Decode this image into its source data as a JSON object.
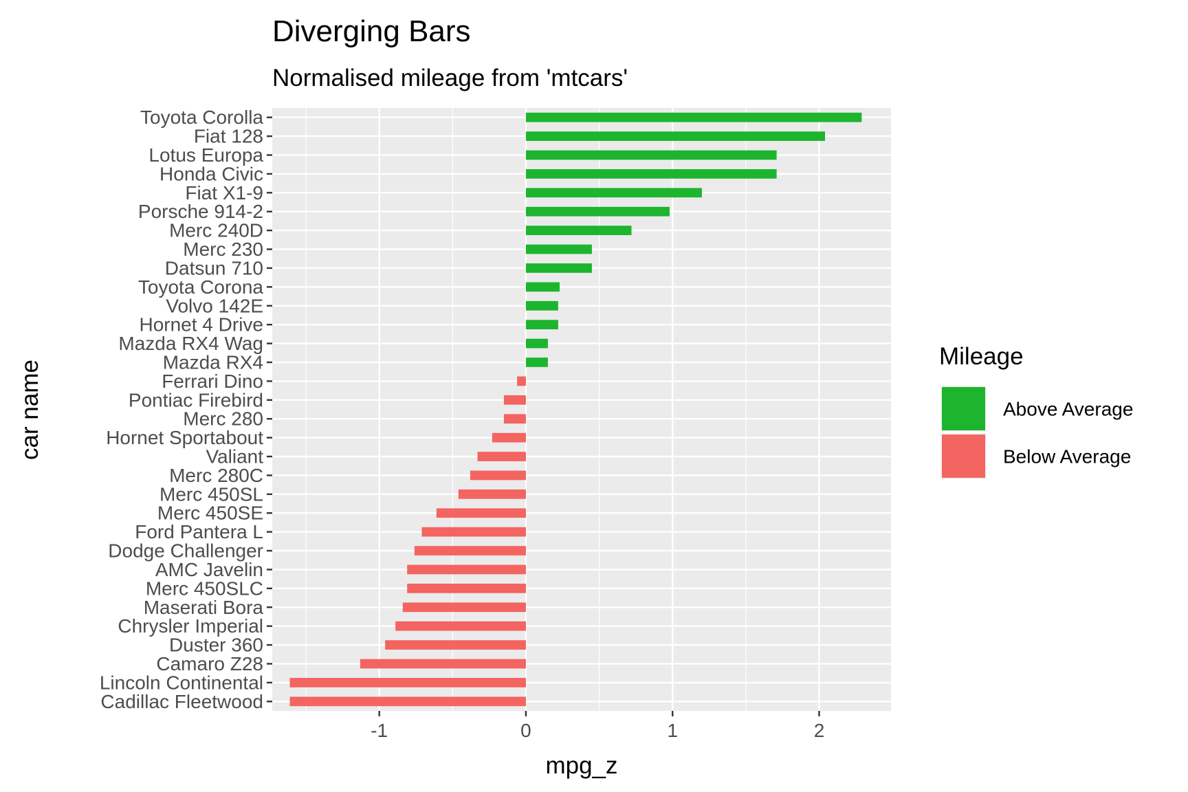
{
  "chart_data": {
    "type": "bar",
    "orientation": "horizontal",
    "title": "Diverging Bars",
    "subtitle": "Normalised mileage from 'mtcars'",
    "xlabel": "mpg_z",
    "ylabel": "car name",
    "xlim": [
      -1.73,
      2.49
    ],
    "xticks": [
      -1,
      0,
      1,
      2
    ],
    "xtick_labels": [
      "-1",
      "0",
      "1",
      "2"
    ],
    "grid": true,
    "legend": {
      "title": "Mileage",
      "position": "right",
      "entries": [
        {
          "label": "Above Average",
          "color": "#1db52e"
        },
        {
          "label": "Below Average",
          "color": "#f46460"
        }
      ]
    },
    "categories": [
      "Toyota Corolla",
      "Fiat 128",
      "Lotus Europa",
      "Honda Civic",
      "Fiat X1-9",
      "Porsche 914-2",
      "Merc 240D",
      "Merc 230",
      "Datsun 710",
      "Toyota Corona",
      "Volvo 142E",
      "Hornet 4 Drive",
      "Mazda RX4 Wag",
      "Mazda RX4",
      "Ferrari Dino",
      "Pontiac Firebird",
      "Merc 280",
      "Hornet Sportabout",
      "Valiant",
      "Merc 280C",
      "Merc 450SL",
      "Merc 450SE",
      "Ford Pantera L",
      "Dodge Challenger",
      "AMC Javelin",
      "Merc 450SLC",
      "Maserati Bora",
      "Chrysler Imperial",
      "Duster 360",
      "Camaro Z28",
      "Lincoln Continental",
      "Cadillac Fleetwood"
    ],
    "values": [
      2.29,
      2.04,
      1.71,
      1.71,
      1.2,
      0.98,
      0.72,
      0.45,
      0.45,
      0.23,
      0.22,
      0.22,
      0.15,
      0.15,
      -0.06,
      -0.15,
      -0.15,
      -0.23,
      -0.33,
      -0.38,
      -0.46,
      -0.61,
      -0.71,
      -0.76,
      -0.81,
      -0.81,
      -0.84,
      -0.89,
      -0.96,
      -1.13,
      -1.61,
      -1.61
    ],
    "groups": [
      "Above Average",
      "Above Average",
      "Above Average",
      "Above Average",
      "Above Average",
      "Above Average",
      "Above Average",
      "Above Average",
      "Above Average",
      "Above Average",
      "Above Average",
      "Above Average",
      "Above Average",
      "Above Average",
      "Below Average",
      "Below Average",
      "Below Average",
      "Below Average",
      "Below Average",
      "Below Average",
      "Below Average",
      "Below Average",
      "Below Average",
      "Below Average",
      "Below Average",
      "Below Average",
      "Below Average",
      "Below Average",
      "Below Average",
      "Below Average",
      "Below Average",
      "Below Average"
    ],
    "colors": {
      "panel_background": "#ebebeb",
      "gridline": "#ffffff",
      "tick_text": "#4d4d4d",
      "tick_mark": "#333333"
    }
  }
}
